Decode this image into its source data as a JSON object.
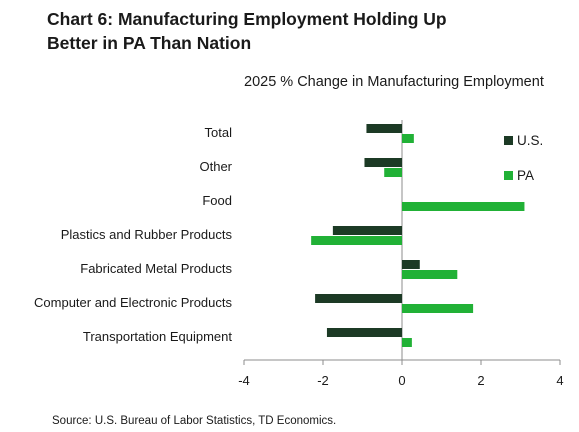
{
  "header": {
    "title_line1": "Chart 6: Manufacturing Employment Holding Up",
    "title_line2": "Better in PA Than Nation"
  },
  "footer": {
    "source": "Source: U.S. Bureau of Labor Statistics, TD Economics."
  },
  "chart_data": {
    "type": "bar",
    "orientation": "horizontal",
    "title": "Chart 6: Manufacturing Employment Holding Up Better in PA Than Nation",
    "subtitle": "2025 % Change in Manufacturing Employment",
    "categories": [
      "Total",
      "Other",
      "Food",
      "Plastics and Rubber Products",
      "Fabricated Metal Products",
      "Computer and Electronic Products",
      "Transportation Equipment"
    ],
    "series": [
      {
        "name": "U.S.",
        "color": "#1c3a25",
        "values": [
          -0.9,
          -0.95,
          0.0,
          -1.75,
          0.45,
          -2.2,
          -1.9
        ]
      },
      {
        "name": "PA",
        "color": "#21b136",
        "values": [
          0.3,
          -0.45,
          3.1,
          -2.3,
          1.4,
          1.8,
          0.25
        ]
      }
    ],
    "xlim": [
      -4,
      4
    ],
    "xticks": [
      -4,
      -2,
      0,
      2,
      4
    ],
    "xtick_labels": [
      "-4",
      "-2",
      "0",
      "2",
      "4"
    ],
    "grid": false,
    "legend_position": "top-right"
  }
}
